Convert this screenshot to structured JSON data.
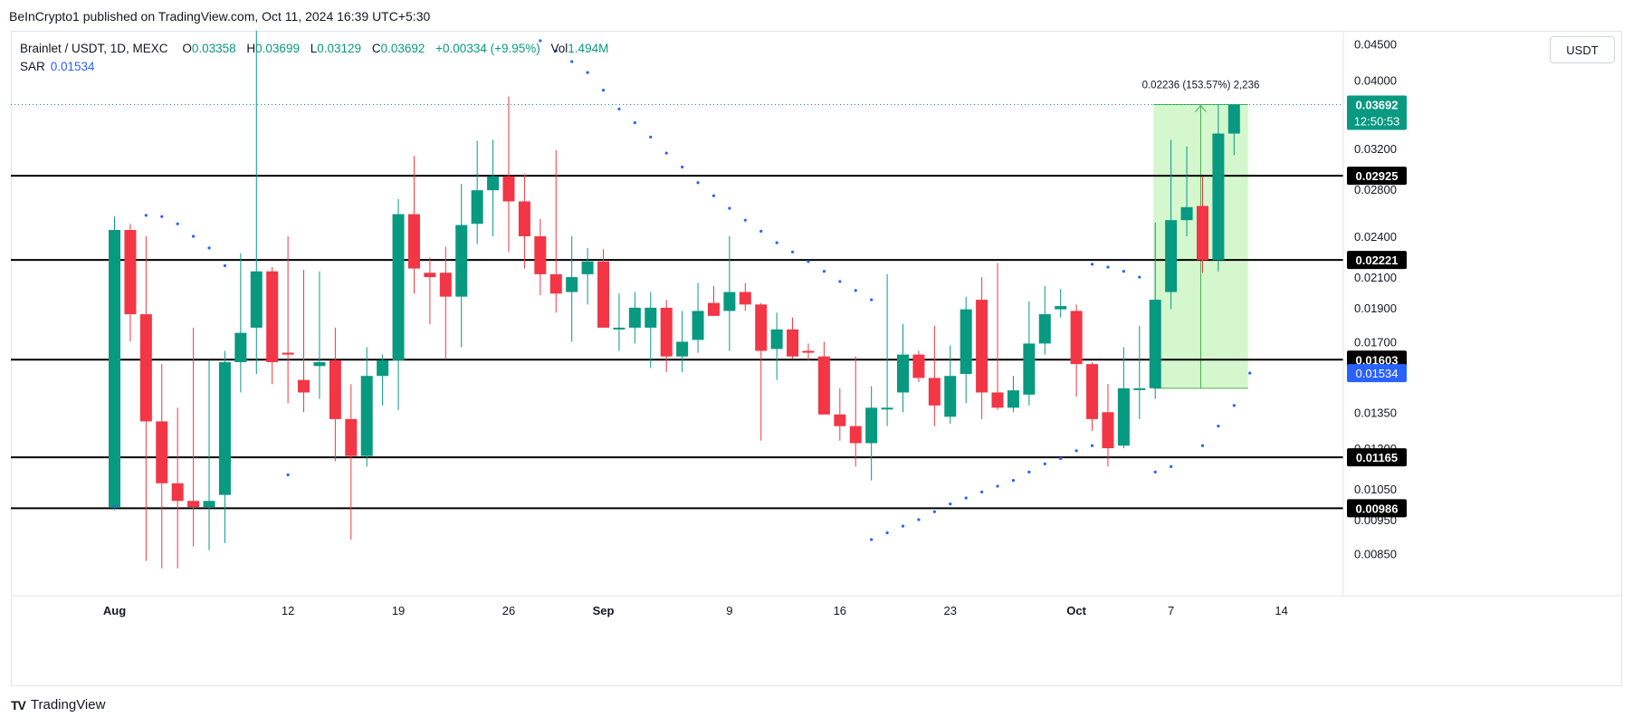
{
  "header": {
    "publisher_line": "BeInCrypto1 published on TradingView.com, Oct 11, 2024 16:39 UTC+5:30"
  },
  "legend": {
    "symbol": "Brainlet / USDT, 1D, MEXC",
    "open_label": "O",
    "open": "0.03358",
    "high_label": "H",
    "high": "0.03699",
    "low_label": "L",
    "low": "0.03129",
    "close_label": "C",
    "close": "0.03692",
    "change": "+0.00334 (+9.95%)",
    "vol_label": "Vol",
    "vol": "1.494M",
    "sar_label": "SAR",
    "sar": "0.01534"
  },
  "toolbar": {
    "currency_button": "USDT"
  },
  "footer": {
    "brand": "TradingView",
    "brand_mark": "TV"
  },
  "colors": {
    "up": "#089981",
    "down": "#f23645",
    "sar": "#2962ff",
    "range_fill": "#ccf6c6",
    "range_line": "#4caf50"
  },
  "chart_data": {
    "type": "candlestick",
    "y_scale": "log",
    "ylim": [
      0.008,
      0.047
    ],
    "y_ticks": [
      "0.04500",
      "0.04000",
      "0.03200",
      "0.02800",
      "0.02400",
      "0.02100",
      "0.01900",
      "0.01700",
      "0.01350",
      "0.01200",
      "0.01050",
      "0.00950",
      "0.00850"
    ],
    "x_ticks": [
      {
        "day": 1,
        "label": "Aug"
      },
      {
        "day": 12,
        "label": "12"
      },
      {
        "day": 19,
        "label": "19"
      },
      {
        "day": 26,
        "label": "26"
      },
      {
        "day": 32,
        "label": "Sep"
      },
      {
        "day": 40,
        "label": "9"
      },
      {
        "day": 47,
        "label": "16"
      },
      {
        "day": 54,
        "label": "23"
      },
      {
        "day": 62,
        "label": "Oct"
      },
      {
        "day": 68,
        "label": "7"
      },
      {
        "day": 75,
        "label": "14"
      }
    ],
    "candles": [
      {
        "d": 1,
        "o": 0.0099,
        "h": 0.0256,
        "l": 0.0098,
        "c": 0.0245
      },
      {
        "d": 2,
        "o": 0.0245,
        "h": 0.025,
        "l": 0.017,
        "c": 0.0186
      },
      {
        "d": 3,
        "o": 0.0186,
        "h": 0.024,
        "l": 0.0083,
        "c": 0.0131
      },
      {
        "d": 4,
        "o": 0.0131,
        "h": 0.0158,
        "l": 0.0081,
        "c": 0.0107
      },
      {
        "d": 5,
        "o": 0.0107,
        "h": 0.0137,
        "l": 0.0081,
        "c": 0.0101
      },
      {
        "d": 6,
        "o": 0.0101,
        "h": 0.0178,
        "l": 0.0087,
        "c": 0.0099
      },
      {
        "d": 7,
        "o": 0.0099,
        "h": 0.016,
        "l": 0.0086,
        "c": 0.0101
      },
      {
        "d": 8,
        "o": 0.0103,
        "h": 0.0165,
        "l": 0.0088,
        "c": 0.0159
      },
      {
        "d": 9,
        "o": 0.0159,
        "h": 0.0227,
        "l": 0.0144,
        "c": 0.0175
      },
      {
        "d": 10,
        "o": 0.0178,
        "h": 0.047,
        "l": 0.0153,
        "c": 0.0214
      },
      {
        "d": 11,
        "o": 0.0214,
        "h": 0.0217,
        "l": 0.0148,
        "c": 0.0159
      },
      {
        "d": 12,
        "o": 0.0164,
        "h": 0.024,
        "l": 0.0139,
        "c": 0.0163
      },
      {
        "d": 13,
        "o": 0.015,
        "h": 0.0215,
        "l": 0.0135,
        "c": 0.0144
      },
      {
        "d": 14,
        "o": 0.0157,
        "h": 0.0214,
        "l": 0.0141,
        "c": 0.0159
      },
      {
        "d": 15,
        "o": 0.016,
        "h": 0.0178,
        "l": 0.0115,
        "c": 0.0132
      },
      {
        "d": 16,
        "o": 0.0132,
        "h": 0.0148,
        "l": 0.0089,
        "c": 0.0117
      },
      {
        "d": 17,
        "o": 0.0117,
        "h": 0.0167,
        "l": 0.0113,
        "c": 0.0152
      },
      {
        "d": 18,
        "o": 0.0152,
        "h": 0.0163,
        "l": 0.0138,
        "c": 0.016
      },
      {
        "d": 19,
        "o": 0.016,
        "h": 0.0271,
        "l": 0.0136,
        "c": 0.0258
      },
      {
        "d": 20,
        "o": 0.0258,
        "h": 0.0312,
        "l": 0.0199,
        "c": 0.0216
      },
      {
        "d": 21,
        "o": 0.0213,
        "h": 0.0224,
        "l": 0.018,
        "c": 0.021
      },
      {
        "d": 22,
        "o": 0.0213,
        "h": 0.0232,
        "l": 0.0161,
        "c": 0.0197
      },
      {
        "d": 23,
        "o": 0.0197,
        "h": 0.0285,
        "l": 0.0167,
        "c": 0.0249
      },
      {
        "d": 24,
        "o": 0.025,
        "h": 0.0328,
        "l": 0.0234,
        "c": 0.0279
      },
      {
        "d": 25,
        "o": 0.0279,
        "h": 0.0329,
        "l": 0.024,
        "c": 0.0292
      },
      {
        "d": 26,
        "o": 0.0292,
        "h": 0.0379,
        "l": 0.0228,
        "c": 0.0269
      },
      {
        "d": 27,
        "o": 0.0269,
        "h": 0.0294,
        "l": 0.0216,
        "c": 0.024
      },
      {
        "d": 28,
        "o": 0.024,
        "h": 0.0254,
        "l": 0.0198,
        "c": 0.0212
      },
      {
        "d": 29,
        "o": 0.0212,
        "h": 0.0318,
        "l": 0.0187,
        "c": 0.0199
      },
      {
        "d": 30,
        "o": 0.02,
        "h": 0.024,
        "l": 0.017,
        "c": 0.021
      },
      {
        "d": 31,
        "o": 0.0212,
        "h": 0.0231,
        "l": 0.0192,
        "c": 0.0221
      },
      {
        "d": 32,
        "o": 0.0221,
        "h": 0.023,
        "l": 0.0178,
        "c": 0.0178
      },
      {
        "d": 33,
        "o": 0.0178,
        "h": 0.0199,
        "l": 0.0165,
        "c": 0.0178
      },
      {
        "d": 34,
        "o": 0.0178,
        "h": 0.02,
        "l": 0.0169,
        "c": 0.019
      },
      {
        "d": 35,
        "o": 0.0178,
        "h": 0.02,
        "l": 0.0156,
        "c": 0.019
      },
      {
        "d": 36,
        "o": 0.019,
        "h": 0.0195,
        "l": 0.0154,
        "c": 0.0162
      },
      {
        "d": 37,
        "o": 0.0162,
        "h": 0.0188,
        "l": 0.0154,
        "c": 0.017
      },
      {
        "d": 38,
        "o": 0.0171,
        "h": 0.0206,
        "l": 0.0164,
        "c": 0.0188
      },
      {
        "d": 39,
        "o": 0.0193,
        "h": 0.0204,
        "l": 0.0187,
        "c": 0.0185
      },
      {
        "d": 40,
        "o": 0.0188,
        "h": 0.024,
        "l": 0.0165,
        "c": 0.02
      },
      {
        "d": 41,
        "o": 0.02,
        "h": 0.0206,
        "l": 0.0188,
        "c": 0.0192
      },
      {
        "d": 42,
        "o": 0.0192,
        "h": 0.0193,
        "l": 0.0123,
        "c": 0.0165
      },
      {
        "d": 43,
        "o": 0.0166,
        "h": 0.0187,
        "l": 0.015,
        "c": 0.0177
      },
      {
        "d": 44,
        "o": 0.0177,
        "h": 0.0184,
        "l": 0.0161,
        "c": 0.0162
      },
      {
        "d": 45,
        "o": 0.0165,
        "h": 0.0169,
        "l": 0.016,
        "c": 0.0164
      },
      {
        "d": 46,
        "o": 0.0162,
        "h": 0.017,
        "l": 0.0134,
        "c": 0.0134
      },
      {
        "d": 47,
        "o": 0.0134,
        "h": 0.0146,
        "l": 0.0123,
        "c": 0.0129
      },
      {
        "d": 48,
        "o": 0.0129,
        "h": 0.0162,
        "l": 0.0113,
        "c": 0.0122
      },
      {
        "d": 49,
        "o": 0.0122,
        "h": 0.0147,
        "l": 0.0108,
        "c": 0.0137
      },
      {
        "d": 50,
        "o": 0.0137,
        "h": 0.0212,
        "l": 0.0129,
        "c": 0.0137
      },
      {
        "d": 51,
        "o": 0.0144,
        "h": 0.018,
        "l": 0.0135,
        "c": 0.0163
      },
      {
        "d": 52,
        "o": 0.0163,
        "h": 0.0165,
        "l": 0.0149,
        "c": 0.0151
      },
      {
        "d": 53,
        "o": 0.0151,
        "h": 0.0179,
        "l": 0.0129,
        "c": 0.0138
      },
      {
        "d": 54,
        "o": 0.0133,
        "h": 0.0168,
        "l": 0.013,
        "c": 0.0152
      },
      {
        "d": 55,
        "o": 0.0153,
        "h": 0.0197,
        "l": 0.0139,
        "c": 0.0189
      },
      {
        "d": 56,
        "o": 0.0195,
        "h": 0.021,
        "l": 0.0132,
        "c": 0.0144
      },
      {
        "d": 57,
        "o": 0.0144,
        "h": 0.022,
        "l": 0.0136,
        "c": 0.0137
      },
      {
        "d": 58,
        "o": 0.0137,
        "h": 0.0152,
        "l": 0.0135,
        "c": 0.0145
      },
      {
        "d": 59,
        "o": 0.0143,
        "h": 0.0194,
        "l": 0.0138,
        "c": 0.0169
      },
      {
        "d": 60,
        "o": 0.0169,
        "h": 0.0204,
        "l": 0.0163,
        "c": 0.0186
      },
      {
        "d": 61,
        "o": 0.0189,
        "h": 0.0202,
        "l": 0.0184,
        "c": 0.0191
      },
      {
        "d": 62,
        "o": 0.0188,
        "h": 0.0192,
        "l": 0.0142,
        "c": 0.0158
      },
      {
        "d": 63,
        "o": 0.0158,
        "h": 0.0159,
        "l": 0.0127,
        "c": 0.0132
      },
      {
        "d": 64,
        "o": 0.0135,
        "h": 0.0148,
        "l": 0.0113,
        "c": 0.012
      },
      {
        "d": 65,
        "o": 0.0121,
        "h": 0.0167,
        "l": 0.012,
        "c": 0.0146
      },
      {
        "d": 66,
        "o": 0.0146,
        "h": 0.0179,
        "l": 0.0132,
        "c": 0.0146
      },
      {
        "d": 67,
        "o": 0.0146,
        "h": 0.0251,
        "l": 0.0141,
        "c": 0.0195
      },
      {
        "d": 68,
        "o": 0.02,
        "h": 0.0329,
        "l": 0.0189,
        "c": 0.0253
      },
      {
        "d": 69,
        "o": 0.0253,
        "h": 0.0322,
        "l": 0.024,
        "c": 0.0264
      },
      {
        "d": 70,
        "o": 0.0265,
        "h": 0.0292,
        "l": 0.0213,
        "c": 0.0222
      },
      {
        "d": 71,
        "o": 0.0222,
        "h": 0.03699,
        "l": 0.0214,
        "c": 0.03358
      },
      {
        "d": 72,
        "o": 0.03358,
        "h": 0.03699,
        "l": 0.03129,
        "c": 0.03692
      }
    ],
    "sar": [
      {
        "d": 1,
        "v": 0.0099
      },
      {
        "d": 3,
        "v": 0.0257
      },
      {
        "d": 4,
        "v": 0.0256
      },
      {
        "d": 5,
        "v": 0.025
      },
      {
        "d": 6,
        "v": 0.024
      },
      {
        "d": 7,
        "v": 0.0231
      },
      {
        "d": 8,
        "v": 0.0218
      },
      {
        "d": 12,
        "v": 0.011
      },
      {
        "d": 28,
        "v": 0.0455
      },
      {
        "d": 29,
        "v": 0.044
      },
      {
        "d": 30,
        "v": 0.0425
      },
      {
        "d": 31,
        "v": 0.041
      },
      {
        "d": 32,
        "v": 0.0387
      },
      {
        "d": 33,
        "v": 0.0364
      },
      {
        "d": 34,
        "v": 0.0348
      },
      {
        "d": 35,
        "v": 0.0332
      },
      {
        "d": 36,
        "v": 0.0315
      },
      {
        "d": 37,
        "v": 0.0301
      },
      {
        "d": 38,
        "v": 0.0286
      },
      {
        "d": 39,
        "v": 0.0274
      },
      {
        "d": 40,
        "v": 0.0263
      },
      {
        "d": 41,
        "v": 0.0253
      },
      {
        "d": 42,
        "v": 0.0244
      },
      {
        "d": 43,
        "v": 0.0235
      },
      {
        "d": 44,
        "v": 0.0228
      },
      {
        "d": 45,
        "v": 0.0221
      },
      {
        "d": 46,
        "v": 0.0214
      },
      {
        "d": 47,
        "v": 0.0207
      },
      {
        "d": 48,
        "v": 0.0201
      },
      {
        "d": 49,
        "v": 0.0195
      },
      {
        "d": 49,
        "v": 0.0089
      },
      {
        "d": 50,
        "v": 0.0091
      },
      {
        "d": 51,
        "v": 0.0093
      },
      {
        "d": 52,
        "v": 0.0095
      },
      {
        "d": 53,
        "v": 0.00975
      },
      {
        "d": 54,
        "v": 0.01
      },
      {
        "d": 55,
        "v": 0.0102
      },
      {
        "d": 56,
        "v": 0.0104
      },
      {
        "d": 57,
        "v": 0.0106
      },
      {
        "d": 58,
        "v": 0.0108
      },
      {
        "d": 59,
        "v": 0.0111
      },
      {
        "d": 60,
        "v": 0.0114
      },
      {
        "d": 61,
        "v": 0.0116
      },
      {
        "d": 62,
        "v": 0.0119
      },
      {
        "d": 63,
        "v": 0.0121
      },
      {
        "d": 63,
        "v": 0.0219
      },
      {
        "d": 64,
        "v": 0.0217
      },
      {
        "d": 65,
        "v": 0.0214
      },
      {
        "d": 66,
        "v": 0.021
      },
      {
        "d": 67,
        "v": 0.0111
      },
      {
        "d": 68,
        "v": 0.0113
      },
      {
        "d": 70,
        "v": 0.0121
      },
      {
        "d": 71,
        "v": 0.0129
      },
      {
        "d": 72,
        "v": 0.0138
      },
      {
        "d": 73,
        "v": 0.01534
      }
    ],
    "levels": [
      {
        "value": 0.02925,
        "label": "0.02925"
      },
      {
        "value": 0.02221,
        "label": "0.02221"
      },
      {
        "value": 0.01603,
        "label": "0.01603"
      },
      {
        "value": 0.01165,
        "label": "0.01165"
      },
      {
        "value": 0.00986,
        "label": "0.00986"
      }
    ],
    "last_price": {
      "value": 0.03692,
      "label": "0.03692",
      "countdown": "12:50:53"
    },
    "sar_tag": {
      "value": 0.01534,
      "label": "0.01534"
    },
    "range_measure": {
      "from_day": 67,
      "to_day": 73,
      "low": 0.0146,
      "high": 0.03692,
      "label": "0.02236 (153.57%) 2,236"
    }
  }
}
